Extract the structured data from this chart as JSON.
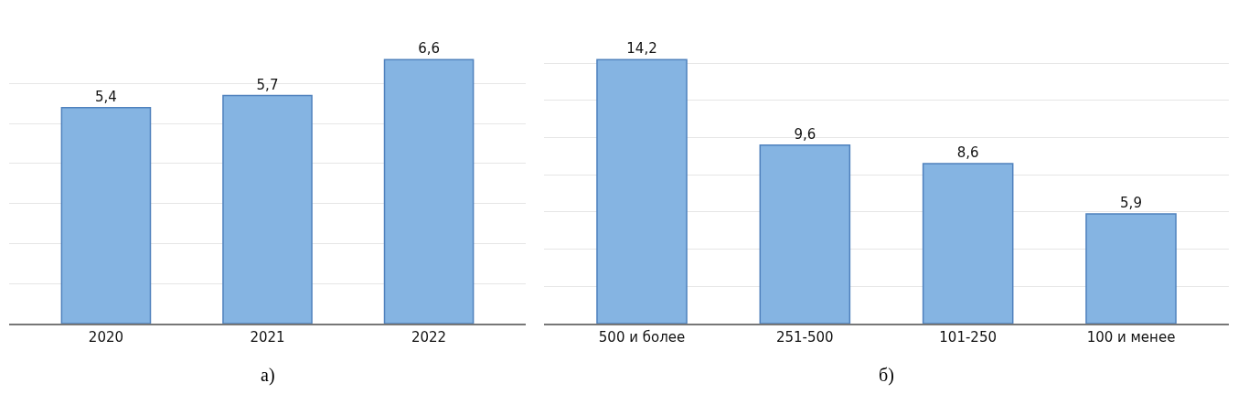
{
  "chart_data": [
    {
      "type": "bar",
      "categories": [
        "2020",
        "2021",
        "2022"
      ],
      "values": [
        5.4,
        5.7,
        6.6
      ],
      "value_labels": [
        "5,4",
        "5,7",
        "6,6"
      ],
      "color": "#85b4e2",
      "grid": "y",
      "tick_labels": "x",
      "annotations": [
        "а)"
      ]
    },
    {
      "type": "bar",
      "categories": [
        "500 и более",
        "251-500",
        "101-250",
        "100 и менее"
      ],
      "values": [
        14.2,
        9.6,
        8.6,
        5.9
      ],
      "value_labels": [
        "14,2",
        "9,6",
        "8,6",
        "5,9"
      ],
      "color": "#85b4e2",
      "grid": "y",
      "tick_labels": "x",
      "annotations": [
        "б)"
      ]
    }
  ]
}
